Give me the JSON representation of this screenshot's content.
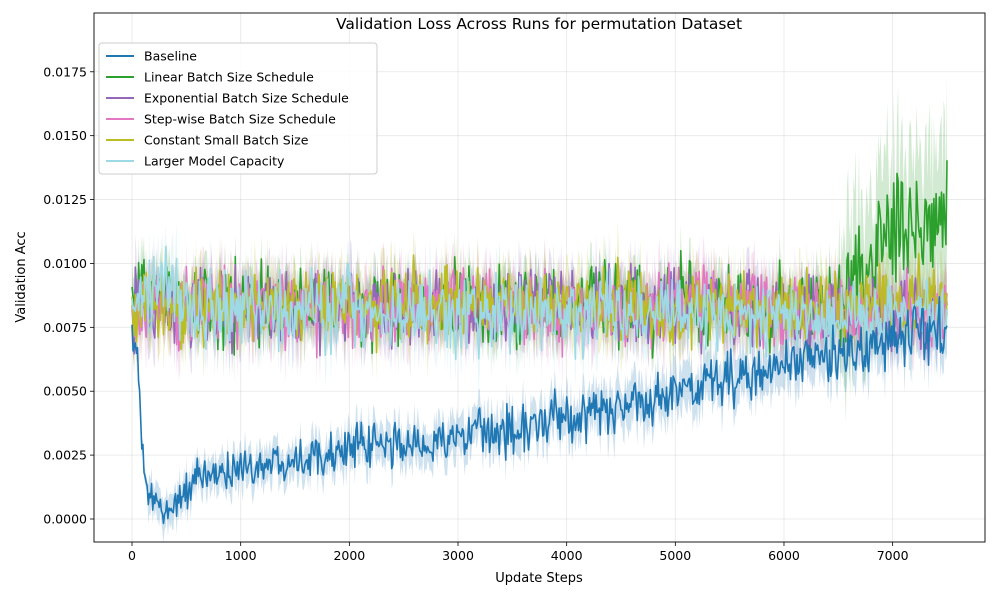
{
  "chart_data": {
    "type": "line",
    "title": "Validation Loss Across Runs for permutation Dataset",
    "xlabel": "Update Steps",
    "ylabel": "Validation Acc",
    "xlim": [
      -350,
      7850
    ],
    "ylim": [
      -0.0009,
      0.0198
    ],
    "xticks": [
      0,
      1000,
      2000,
      3000,
      4000,
      5000,
      6000,
      7000
    ],
    "yticks": [
      0.0,
      0.0025,
      0.005,
      0.0075,
      0.01,
      0.0125,
      0.015,
      0.0175
    ],
    "ytick_labels": [
      "0.0000",
      "0.0025",
      "0.0050",
      "0.0075",
      "0.0100",
      "0.0125",
      "0.0150",
      "0.0175"
    ],
    "grid": true,
    "legend_position": "top-left",
    "shaded_band": true,
    "x_max": 7500,
    "series": [
      {
        "name": "Baseline",
        "color": "#1f77b4",
        "x": [
          0,
          50,
          100,
          150,
          200,
          300,
          400,
          500,
          600,
          800,
          1000,
          1500,
          2000,
          2500,
          3000,
          3500,
          4000,
          4500,
          5000,
          5500,
          6000,
          6500,
          7000,
          7500
        ],
        "y": [
          0.0075,
          0.0062,
          0.0023,
          0.0008,
          0.0007,
          0.0002,
          0.0007,
          0.0011,
          0.0015,
          0.0018,
          0.002,
          0.0024,
          0.0028,
          0.0029,
          0.0031,
          0.0035,
          0.0039,
          0.0044,
          0.0049,
          0.0055,
          0.0059,
          0.0065,
          0.007,
          0.0074
        ]
      },
      {
        "name": "Linear Batch Size Schedule",
        "color": "#2ca02c",
        "x": [
          0,
          500,
          1000,
          2000,
          3000,
          4000,
          5000,
          6000,
          6500,
          6700,
          7000,
          7200,
          7500
        ],
        "y": [
          0.0085,
          0.0085,
          0.0084,
          0.0084,
          0.0085,
          0.0083,
          0.0084,
          0.0083,
          0.0088,
          0.0098,
          0.0112,
          0.0118,
          0.0115
        ]
      },
      {
        "name": "Exponential Batch Size Schedule",
        "color": "#9467bd",
        "x": [
          0,
          500,
          1000,
          2000,
          3000,
          4000,
          5000,
          5400,
          6000,
          7000,
          7500
        ],
        "y": [
          0.0082,
          0.0083,
          0.0082,
          0.0082,
          0.0082,
          0.0083,
          0.0082,
          0.0084,
          0.0082,
          0.008,
          0.0081
        ]
      },
      {
        "name": "Step-wise Batch Size Schedule",
        "color": "#e377c2",
        "x": [
          0,
          500,
          1000,
          2000,
          3000,
          4000,
          5000,
          6000,
          7000,
          7500
        ],
        "y": [
          0.0083,
          0.0082,
          0.0082,
          0.0083,
          0.0083,
          0.0082,
          0.0083,
          0.0082,
          0.0081,
          0.0081
        ]
      },
      {
        "name": "Constant Small Batch Size",
        "color": "#bcbd22",
        "x": [
          0,
          500,
          1000,
          2000,
          3000,
          4000,
          5000,
          6000,
          7000,
          7500
        ],
        "y": [
          0.0084,
          0.0083,
          0.0083,
          0.0084,
          0.0083,
          0.0083,
          0.0083,
          0.0083,
          0.0085,
          0.0086
        ]
      },
      {
        "name": "Larger Model Capacity",
        "color": "#9edae5",
        "x": [
          0,
          300,
          500,
          1000,
          2000,
          3000,
          4000,
          5000,
          6000,
          7000,
          7500
        ],
        "y": [
          0.0082,
          0.0095,
          0.0082,
          0.0081,
          0.0081,
          0.0081,
          0.008,
          0.0081,
          0.008,
          0.0079,
          0.0078
        ]
      }
    ]
  }
}
